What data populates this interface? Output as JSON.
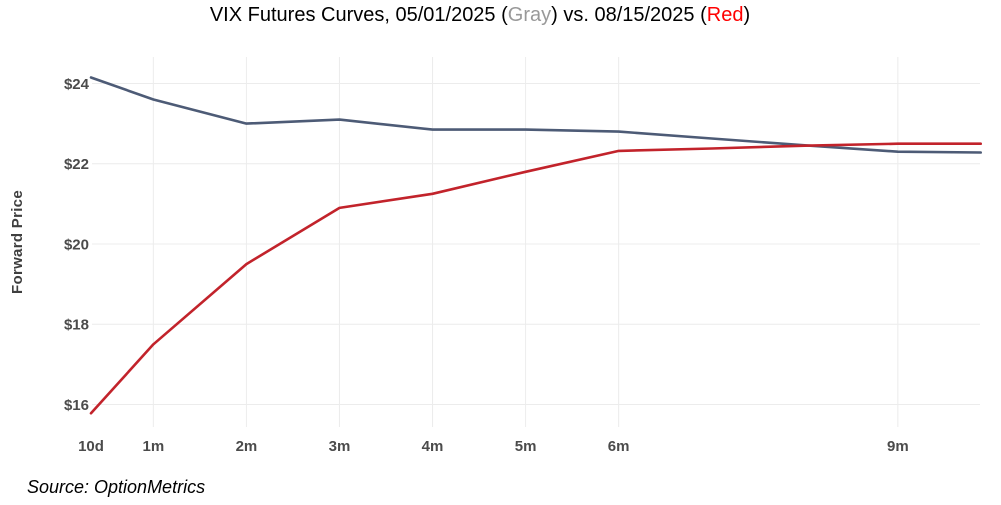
{
  "title": {
    "part1": "VIX Futures Curves, 05/01/2025 (",
    "gray_label": "Gray",
    "part2": ") vs. 08/15/2025 (",
    "red_label": "Red",
    "part3": ")"
  },
  "source_note": "Source: OptionMetrics",
  "colors": {
    "gray_series": "#4d5b76",
    "red_series": "#c2232b",
    "title_gray": "#999999",
    "title_red": "#ff0000",
    "gridline": "#ececec",
    "tick_label": "#4b4b4b",
    "axis_title": "#3f3f3f"
  },
  "chart_data": {
    "type": "line",
    "title": "VIX Futures Curves, 05/01/2025 (Gray) vs. 08/15/2025 (Red)",
    "xlabel": "",
    "ylabel": "Forward Price",
    "x_unit": "time to expiry (months)",
    "x": [
      0.33,
      1,
      2,
      3,
      4,
      5,
      6,
      7,
      8,
      9,
      9.89
    ],
    "series": [
      {
        "name": "05/01/2025",
        "key": "gray",
        "color_key": "gray_series",
        "values": [
          24.15,
          23.6,
          23.0,
          23.1,
          22.85,
          22.85,
          22.8,
          22.63,
          22.46,
          22.3,
          22.28
        ]
      },
      {
        "name": "08/15/2025",
        "key": "red",
        "color_key": "red_series",
        "values": [
          15.78,
          17.5,
          19.5,
          20.9,
          21.25,
          21.8,
          22.32,
          22.38,
          22.45,
          22.5,
          22.5
        ]
      }
    ],
    "x_ticks": [
      {
        "m": 0.33,
        "label": "10d",
        "gridline": false
      },
      {
        "m": 1,
        "label": "1m",
        "gridline": true
      },
      {
        "m": 2,
        "label": "2m",
        "gridline": true
      },
      {
        "m": 3,
        "label": "3m",
        "gridline": true
      },
      {
        "m": 4,
        "label": "4m",
        "gridline": true
      },
      {
        "m": 5,
        "label": "5m",
        "gridline": true
      },
      {
        "m": 6,
        "label": "6m",
        "gridline": true
      },
      {
        "m": 9,
        "label": "9m",
        "gridline": true
      }
    ],
    "y_ticks": [
      {
        "v": 16,
        "label": "$16"
      },
      {
        "v": 18,
        "label": "$18"
      },
      {
        "v": 20,
        "label": "$20"
      },
      {
        "v": 22,
        "label": "$22"
      },
      {
        "v": 24,
        "label": "$24"
      }
    ],
    "xlim": [
      0.33,
      9.89
    ],
    "ylim": [
      15.45,
      24.65
    ],
    "grid": true,
    "legend": "none"
  }
}
